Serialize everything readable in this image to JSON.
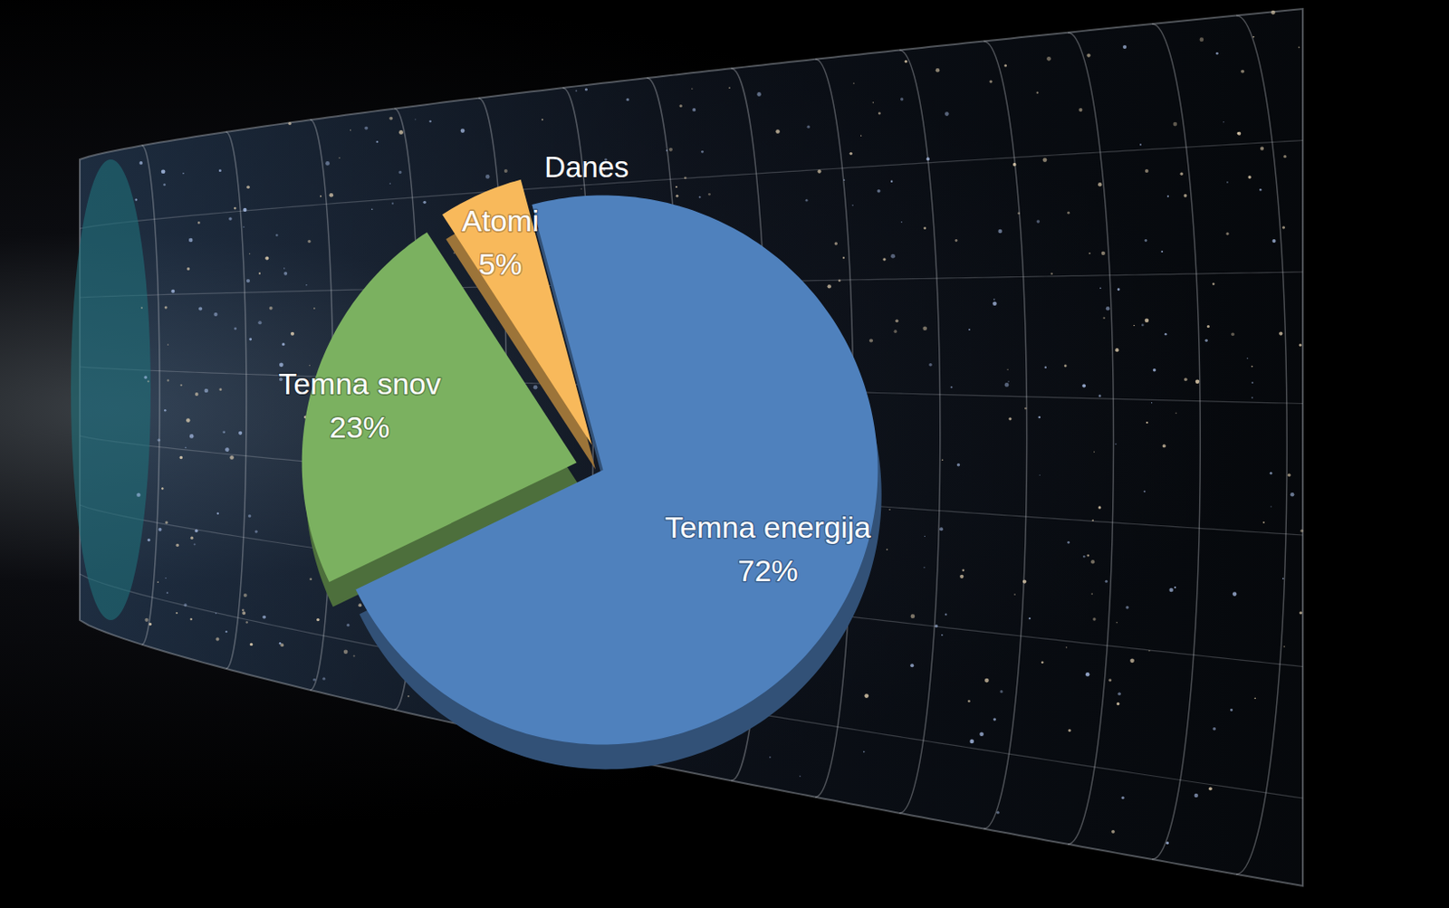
{
  "chart_data": {
    "type": "pie",
    "title": "Danes",
    "categories": [
      "Temna energija",
      "Temna snov",
      "Atomi"
    ],
    "values": [
      72,
      23,
      5
    ],
    "value_labels": [
      "72%",
      "23%",
      "5%"
    ],
    "colors": [
      "#4f81bd",
      "#7bb160",
      "#f8b95b"
    ],
    "data_labels": true
  }
}
